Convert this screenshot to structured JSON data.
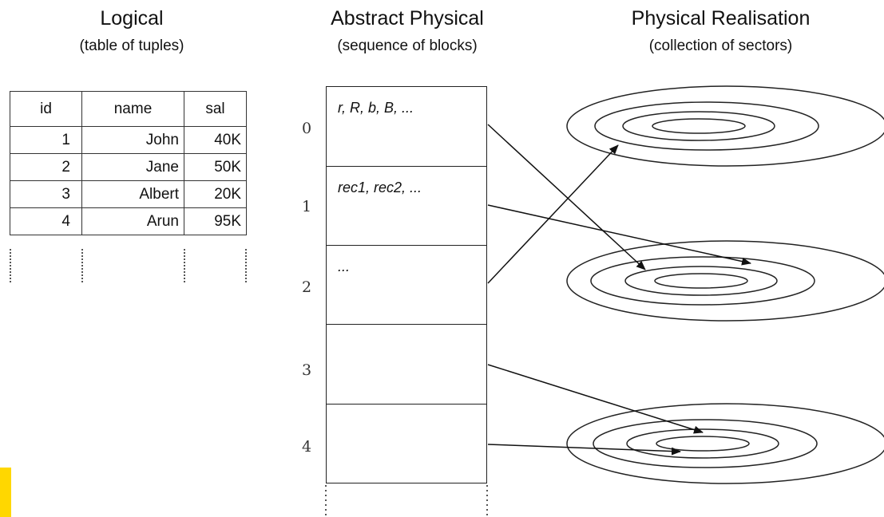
{
  "columns": {
    "logical": {
      "title": "Logical",
      "subtitle": "(table of tuples)"
    },
    "abstract_physical": {
      "title": "Abstract Physical",
      "subtitle": "(sequence of blocks)"
    },
    "physical_realisation": {
      "title": "Physical Realisation",
      "subtitle": "(collection of sectors)"
    }
  },
  "table": {
    "headers": [
      "id",
      "name",
      "sal"
    ],
    "rows": [
      [
        "1",
        "John",
        "40K"
      ],
      [
        "2",
        "Jane",
        "50K"
      ],
      [
        "3",
        "Albert",
        "20K"
      ],
      [
        "4",
        "Arun",
        "95K"
      ]
    ]
  },
  "blocks": [
    {
      "number": "0",
      "content": "r, R, b, B, ..."
    },
    {
      "number": "1",
      "content": "rec1, rec2, ..."
    },
    {
      "number": "2",
      "content": "..."
    },
    {
      "number": "3",
      "content": ""
    },
    {
      "number": "4",
      "content": ""
    }
  ],
  "colors": {
    "line": "#222222",
    "highlight": "#ffd700"
  }
}
